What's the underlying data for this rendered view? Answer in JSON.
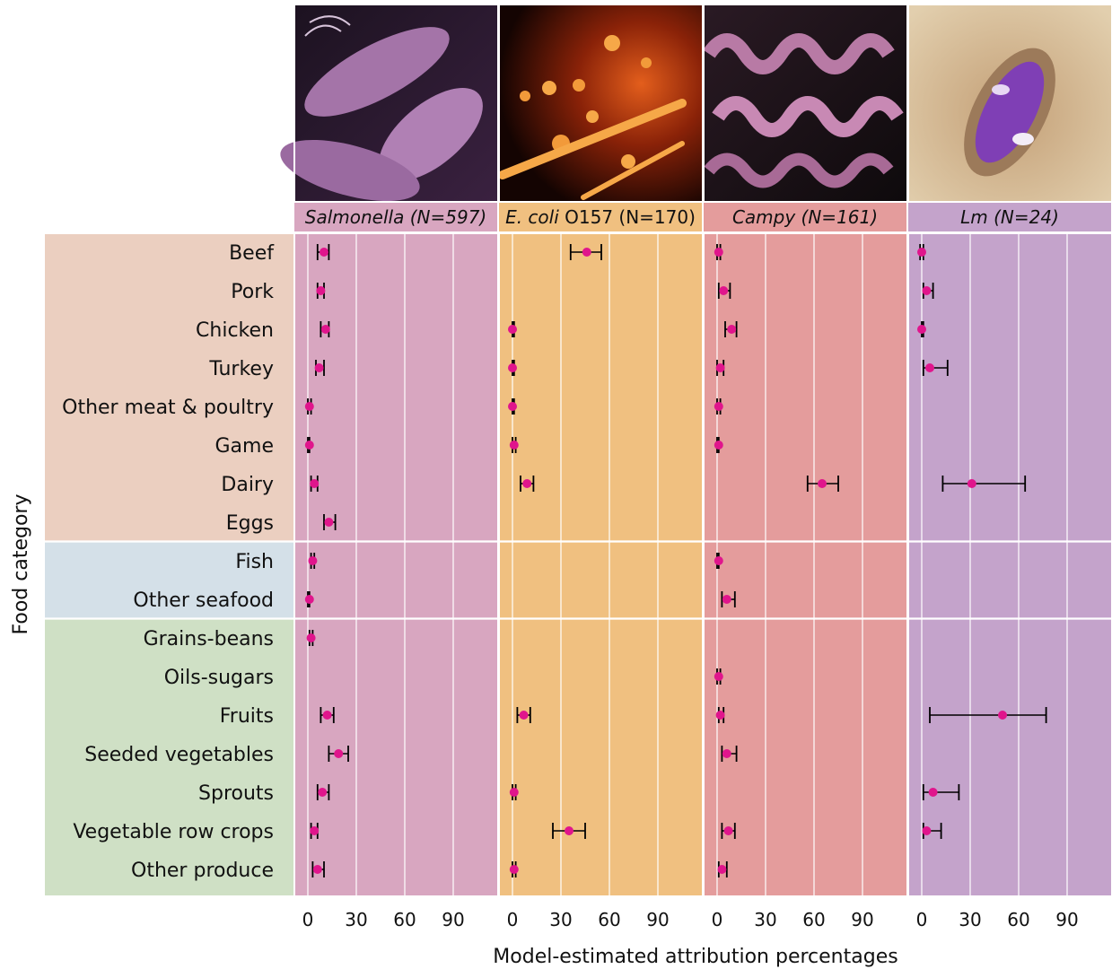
{
  "chart_data": {
    "type": "scatter",
    "xlabel": "Model-estimated attribution percentages",
    "ylabel": "Food category",
    "xlim": [
      -8,
      110
    ],
    "xticks": [
      0,
      30,
      60,
      90
    ],
    "grid": true,
    "colors": {
      "meat_group": "#ebcfc0",
      "seafood_group": "#d4e0e8",
      "produce_group": "#cfe0c5",
      "point": "#e0158c",
      "errorbar": "#000000"
    },
    "category_groups": [
      {
        "name": "meat",
        "start": 0,
        "end": 7
      },
      {
        "name": "seafood",
        "start": 8,
        "end": 9
      },
      {
        "name": "produce",
        "start": 10,
        "end": 16
      }
    ],
    "categories": [
      "Beef",
      "Pork",
      "Chicken",
      "Turkey",
      "Other meat & poultry",
      "Game",
      "Dairy",
      "Eggs",
      "Fish",
      "Other seafood",
      "Grains-beans",
      "Oils-sugars",
      "Fruits",
      "Seeded vegetables",
      "Sprouts",
      "Vegetable row crops",
      "Other produce"
    ],
    "panels": [
      {
        "title_italic": "Salmonella",
        "title_rest": " (N=597)",
        "title_all_italic": true,
        "bg": "#d8a6c0",
        "header_bg": "#d8a6c0",
        "image": "salmonella",
        "points": [
          {
            "category": "Beef",
            "value": 10,
            "low": 6,
            "high": 13
          },
          {
            "category": "Pork",
            "value": 8,
            "low": 6,
            "high": 10
          },
          {
            "category": "Chicken",
            "value": 11,
            "low": 8,
            "high": 13
          },
          {
            "category": "Turkey",
            "value": 7,
            "low": 5,
            "high": 10
          },
          {
            "category": "Other meat & poultry",
            "value": 1,
            "low": 0,
            "high": 2
          },
          {
            "category": "Game",
            "value": 1,
            "low": 0,
            "high": 1
          },
          {
            "category": "Dairy",
            "value": 4,
            "low": 2,
            "high": 6
          },
          {
            "category": "Eggs",
            "value": 13,
            "low": 10,
            "high": 17
          },
          {
            "category": "Fish",
            "value": 3,
            "low": 2,
            "high": 4
          },
          {
            "category": "Other seafood",
            "value": 1,
            "low": 0,
            "high": 1
          },
          {
            "category": "Grains-beans",
            "value": 2,
            "low": 1,
            "high": 3
          },
          {
            "category": "Fruits",
            "value": 12,
            "low": 8,
            "high": 16
          },
          {
            "category": "Seeded vegetables",
            "value": 19,
            "low": 13,
            "high": 25
          },
          {
            "category": "Sprouts",
            "value": 9,
            "low": 6,
            "high": 13
          },
          {
            "category": "Vegetable row crops",
            "value": 4,
            "low": 2,
            "high": 6
          },
          {
            "category": "Other produce",
            "value": 6,
            "low": 3,
            "high": 10
          }
        ]
      },
      {
        "title_italic": "E. coli",
        "title_rest": " O157 (N=170)",
        "title_all_italic": false,
        "bg": "#f0c080",
        "header_bg": "#f0c080",
        "image": "ecoli",
        "points": [
          {
            "category": "Beef",
            "value": 46,
            "low": 36,
            "high": 55
          },
          {
            "category": "Chicken",
            "value": 0,
            "low": 0,
            "high": 1
          },
          {
            "category": "Turkey",
            "value": 0,
            "low": 0,
            "high": 1
          },
          {
            "category": "Other meat & poultry",
            "value": 0,
            "low": 0,
            "high": 1
          },
          {
            "category": "Game",
            "value": 1,
            "low": 0,
            "high": 2
          },
          {
            "category": "Dairy",
            "value": 9,
            "low": 5,
            "high": 13
          },
          {
            "category": "Fruits",
            "value": 7,
            "low": 3,
            "high": 11
          },
          {
            "category": "Sprouts",
            "value": 1,
            "low": 0,
            "high": 2
          },
          {
            "category": "Vegetable row crops",
            "value": 35,
            "low": 25,
            "high": 45
          },
          {
            "category": "Other produce",
            "value": 1,
            "low": 0,
            "high": 2
          }
        ]
      },
      {
        "title_italic": "Campy",
        "title_rest": " (N=161)",
        "title_all_italic": true,
        "bg": "#e49c9c",
        "header_bg": "#e49c9c",
        "image": "campy",
        "points": [
          {
            "category": "Beef",
            "value": 1,
            "low": 0,
            "high": 2
          },
          {
            "category": "Pork",
            "value": 4,
            "low": 1,
            "high": 8
          },
          {
            "category": "Chicken",
            "value": 9,
            "low": 5,
            "high": 12
          },
          {
            "category": "Turkey",
            "value": 2,
            "low": 0,
            "high": 4
          },
          {
            "category": "Other meat & poultry",
            "value": 1,
            "low": 0,
            "high": 2
          },
          {
            "category": "Game",
            "value": 1,
            "low": 0,
            "high": 1
          },
          {
            "category": "Dairy",
            "value": 65,
            "low": 56,
            "high": 75
          },
          {
            "category": "Fish",
            "value": 1,
            "low": 0,
            "high": 1
          },
          {
            "category": "Other seafood",
            "value": 6,
            "low": 3,
            "high": 11
          },
          {
            "category": "Oils-sugars",
            "value": 1,
            "low": 0,
            "high": 2
          },
          {
            "category": "Fruits",
            "value": 2,
            "low": 1,
            "high": 4
          },
          {
            "category": "Seeded vegetables",
            "value": 6,
            "low": 3,
            "high": 12
          },
          {
            "category": "Vegetable row crops",
            "value": 7,
            "low": 3,
            "high": 11
          },
          {
            "category": "Other produce",
            "value": 3,
            "low": 1,
            "high": 6
          }
        ]
      },
      {
        "title_italic": "Lm",
        "title_rest": " (N=24)",
        "title_all_italic": true,
        "bg": "#c4a3cb",
        "header_bg": "#c4a3cb",
        "image": "listeria",
        "points": [
          {
            "category": "Beef",
            "value": 0,
            "low": -1,
            "high": 1
          },
          {
            "category": "Pork",
            "value": 3,
            "low": 1,
            "high": 7
          },
          {
            "category": "Chicken",
            "value": 0,
            "low": 0,
            "high": 1
          },
          {
            "category": "Turkey",
            "value": 5,
            "low": 1,
            "high": 16
          },
          {
            "category": "Dairy",
            "value": 31,
            "low": 13,
            "high": 64
          },
          {
            "category": "Fruits",
            "value": 50,
            "low": 5,
            "high": 77
          },
          {
            "category": "Sprouts",
            "value": 7,
            "low": 1,
            "high": 23
          },
          {
            "category": "Vegetable row crops",
            "value": 3,
            "low": 1,
            "high": 12
          }
        ]
      }
    ]
  }
}
